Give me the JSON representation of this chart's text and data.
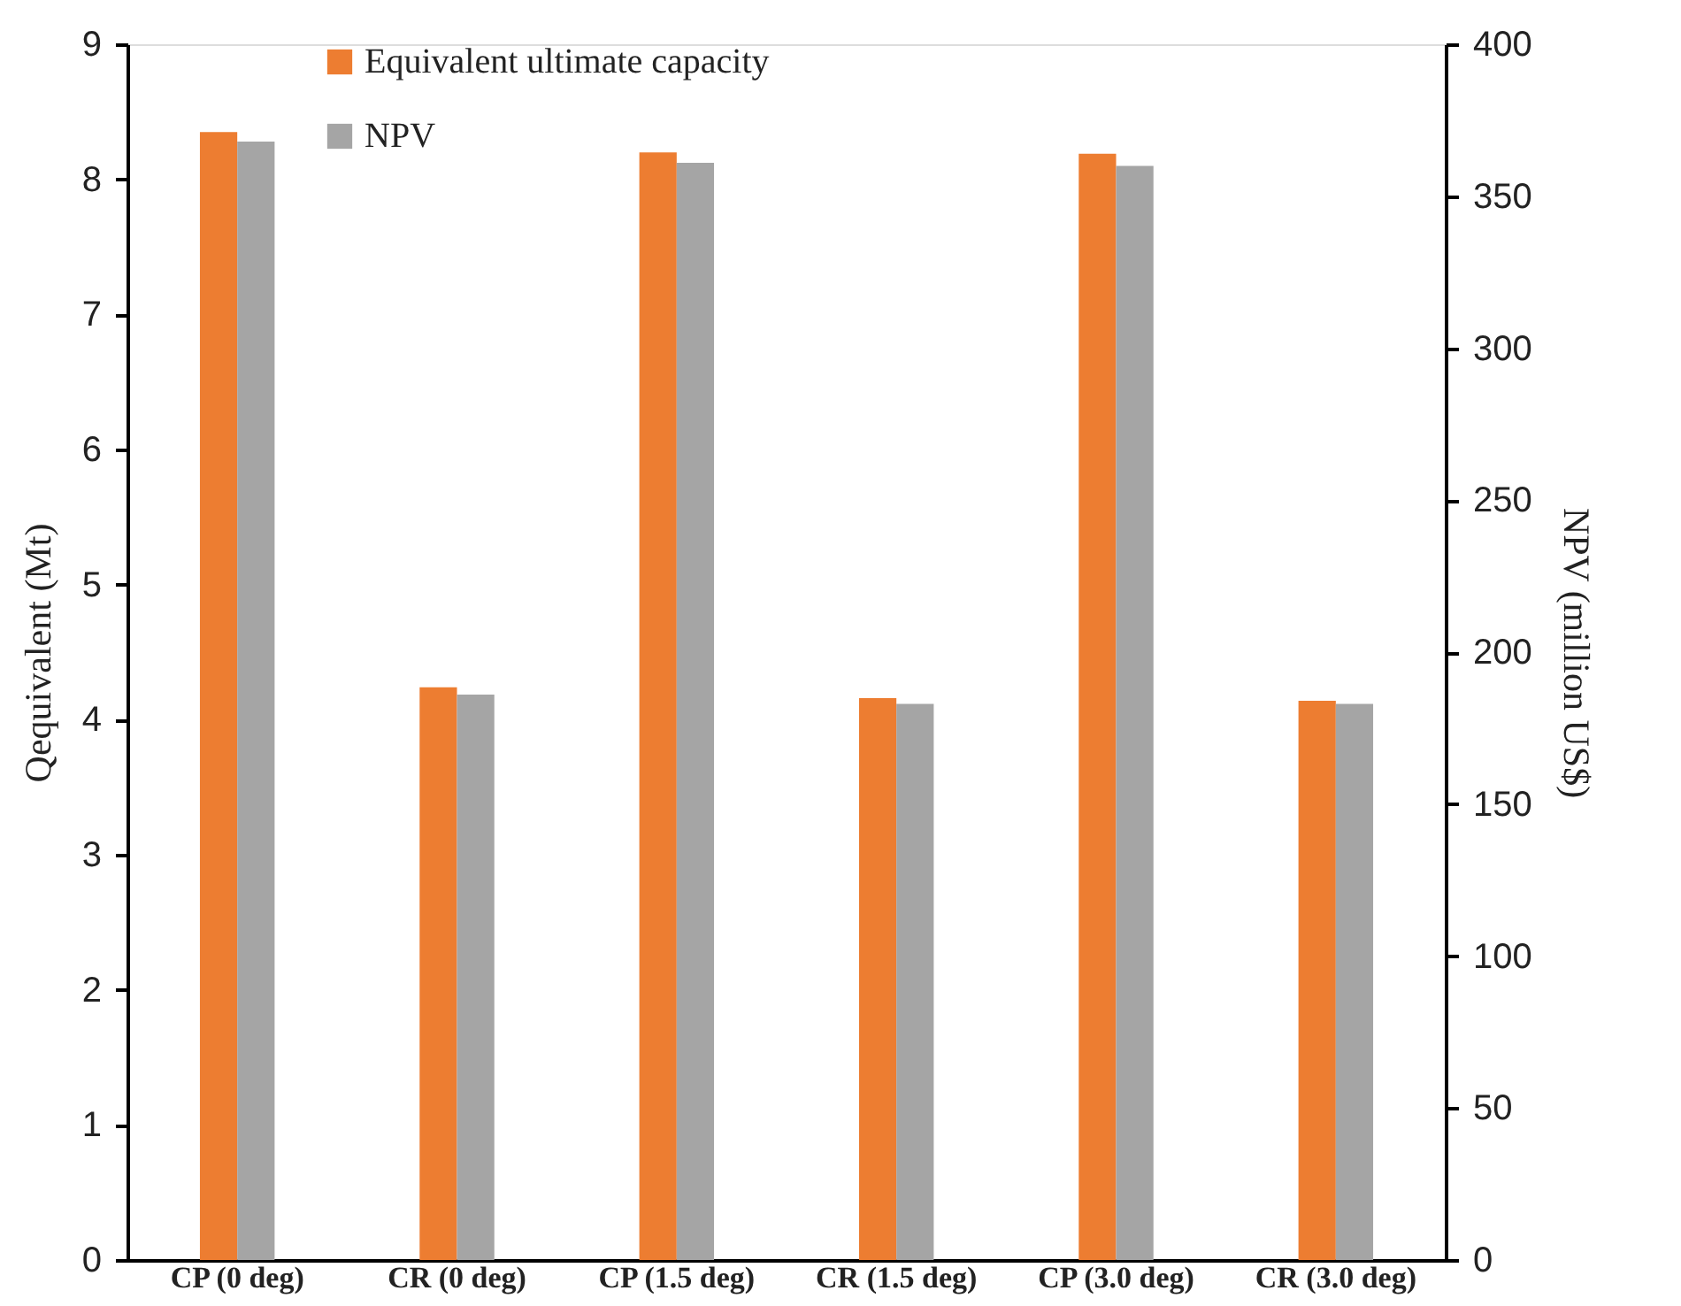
{
  "chart_data": {
    "type": "bar",
    "categories": [
      "CP (0 deg)",
      "CR (0 deg)",
      "CP (1.5 deg)",
      "CR (1.5 deg)",
      "CP (3.0 deg)",
      "CR (3.0 deg)"
    ],
    "ylabel": "Qequivalent (Mt)",
    "y2label": "NPV (million US$)",
    "series": [
      {
        "name": "Equivalent ultimate capacity",
        "color": "#ed7d31",
        "values": [
          8.35,
          4.24,
          8.2,
          4.16,
          8.19,
          4.14
        ]
      },
      {
        "name": "NPV",
        "color": "#a5a5a5",
        "axis": "y2",
        "values": [
          368,
          186,
          361,
          183,
          360,
          183
        ]
      }
    ],
    "ylim": [
      0,
      9
    ],
    "yticks": [
      0,
      1,
      2,
      3,
      4,
      5,
      6,
      7,
      8,
      9
    ],
    "y2lim": [
      0,
      400
    ],
    "y2ticks": [
      0,
      50,
      100,
      150,
      200,
      250,
      300,
      350,
      400
    ],
    "grid": false,
    "legend": "top left"
  }
}
